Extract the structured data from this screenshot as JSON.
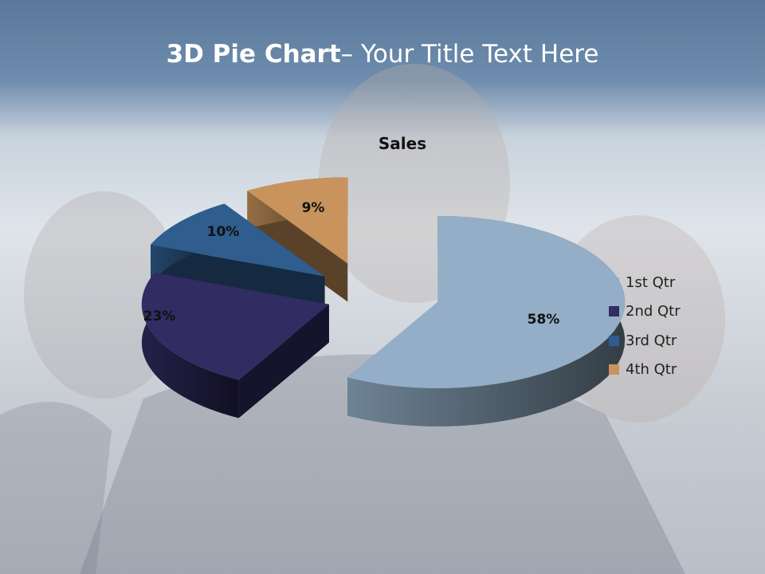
{
  "slide": {
    "title_bold": "3D Pie Chart",
    "title_rest": "– Your Title Text Here"
  },
  "chart_data": {
    "type": "pie",
    "variant": "3d-exploded",
    "title": "Sales",
    "categories": [
      "1st Qtr",
      "2nd Qtr",
      "3rd Qtr",
      "4th Qtr"
    ],
    "values": [
      58,
      23,
      10,
      9
    ],
    "data_labels": [
      "58%",
      "23%",
      "10%",
      "9%"
    ],
    "colors": [
      "#93aec6",
      "#312c62",
      "#2e5d8e",
      "#c8935c"
    ],
    "legend_position": "right"
  }
}
